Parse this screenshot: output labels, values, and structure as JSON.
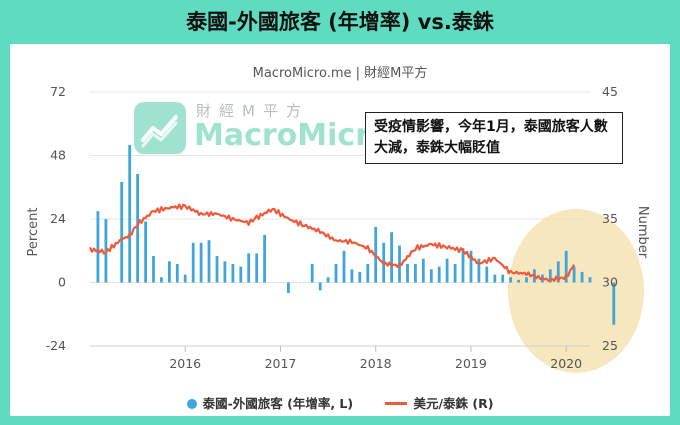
{
  "title": "泰國-外國旅客 (年增率) vs.泰銖",
  "subtitle": "MacroMicro.me | 財經M平方",
  "annotation": "受疫情影響，今年1月，泰國旅客人數大減，泰銖大幅貶值",
  "logo": {
    "sub": "財經M平方",
    "main": "MacroMicro"
  },
  "colors": {
    "background": "#5fdcc0",
    "bars": "#3ea6dd",
    "line": "#ef5a3c",
    "highlight": "#f4dfa8"
  },
  "chart_data": {
    "type": "bar",
    "title": "泰國-外國旅客 (年增率) vs.泰銖",
    "x_ticks": [
      "2016",
      "2017",
      "2018",
      "2019",
      "2020"
    ],
    "y_left": {
      "label": "Percent",
      "ticks": [
        "72",
        "48",
        "24",
        "0",
        "-24"
      ],
      "range": [
        -24,
        72
      ]
    },
    "y_right": {
      "label": "Number",
      "ticks": [
        "45",
        "40",
        "35",
        "30",
        "25"
      ],
      "range": [
        25,
        45
      ]
    },
    "legend_position": "bottom",
    "series": [
      {
        "name": "泰國-外國旅客 (年增率, L)",
        "type": "bar",
        "axis": "left",
        "start": "2015-02",
        "values": [
          27,
          24,
          0,
          38,
          52,
          41,
          23,
          10,
          2,
          8,
          7,
          3,
          15,
          15,
          16,
          10,
          8,
          7,
          6,
          11,
          11,
          18,
          0,
          0,
          -4,
          0,
          0,
          7,
          -3,
          2,
          7,
          12,
          5,
          4,
          7,
          21,
          15,
          19,
          14,
          7,
          7,
          9,
          5,
          6,
          9,
          7,
          13,
          12,
          9,
          6,
          3,
          3,
          2,
          1,
          2,
          5,
          3,
          5,
          8,
          12,
          6,
          4,
          2,
          0,
          0,
          -16,
          0,
          0,
          0,
          0,
          0,
          0
        ]
      },
      {
        "name": "美元/泰銖 (R)",
        "type": "line",
        "axis": "right",
        "points": [
          [
            "2015-01",
            32.6
          ],
          [
            "2015-03",
            32.4
          ],
          [
            "2015-05",
            33.4
          ],
          [
            "2015-06",
            33.7
          ],
          [
            "2015-07",
            34.6
          ],
          [
            "2015-09",
            35.6
          ],
          [
            "2015-11",
            35.9
          ],
          [
            "2016-01",
            36.0
          ],
          [
            "2016-03",
            35.4
          ],
          [
            "2016-05",
            35.4
          ],
          [
            "2016-07",
            35.0
          ],
          [
            "2016-09",
            34.7
          ],
          [
            "2016-10",
            35.1
          ],
          [
            "2016-12",
            35.8
          ],
          [
            "2017-02",
            35.0
          ],
          [
            "2017-04",
            34.5
          ],
          [
            "2017-06",
            34.0
          ],
          [
            "2017-08",
            33.3
          ],
          [
            "2017-10",
            33.2
          ],
          [
            "2017-12",
            32.7
          ],
          [
            "2018-02",
            31.5
          ],
          [
            "2018-04",
            31.3
          ],
          [
            "2018-06",
            32.7
          ],
          [
            "2018-08",
            33.0
          ],
          [
            "2018-10",
            32.8
          ],
          [
            "2018-12",
            32.5
          ],
          [
            "2019-02",
            31.5
          ],
          [
            "2019-04",
            31.9
          ],
          [
            "2019-06",
            30.8
          ],
          [
            "2019-08",
            30.7
          ],
          [
            "2019-10",
            30.3
          ],
          [
            "2019-11",
            30.2
          ],
          [
            "2019-12",
            30.3
          ],
          [
            "2020-01",
            30.4
          ],
          [
            "2020-02",
            31.4
          ]
        ]
      }
    ]
  },
  "legend": {
    "bars_label": "泰國-外國旅客 (年增率, L)",
    "line_label": "美元/泰銖 (R)"
  }
}
